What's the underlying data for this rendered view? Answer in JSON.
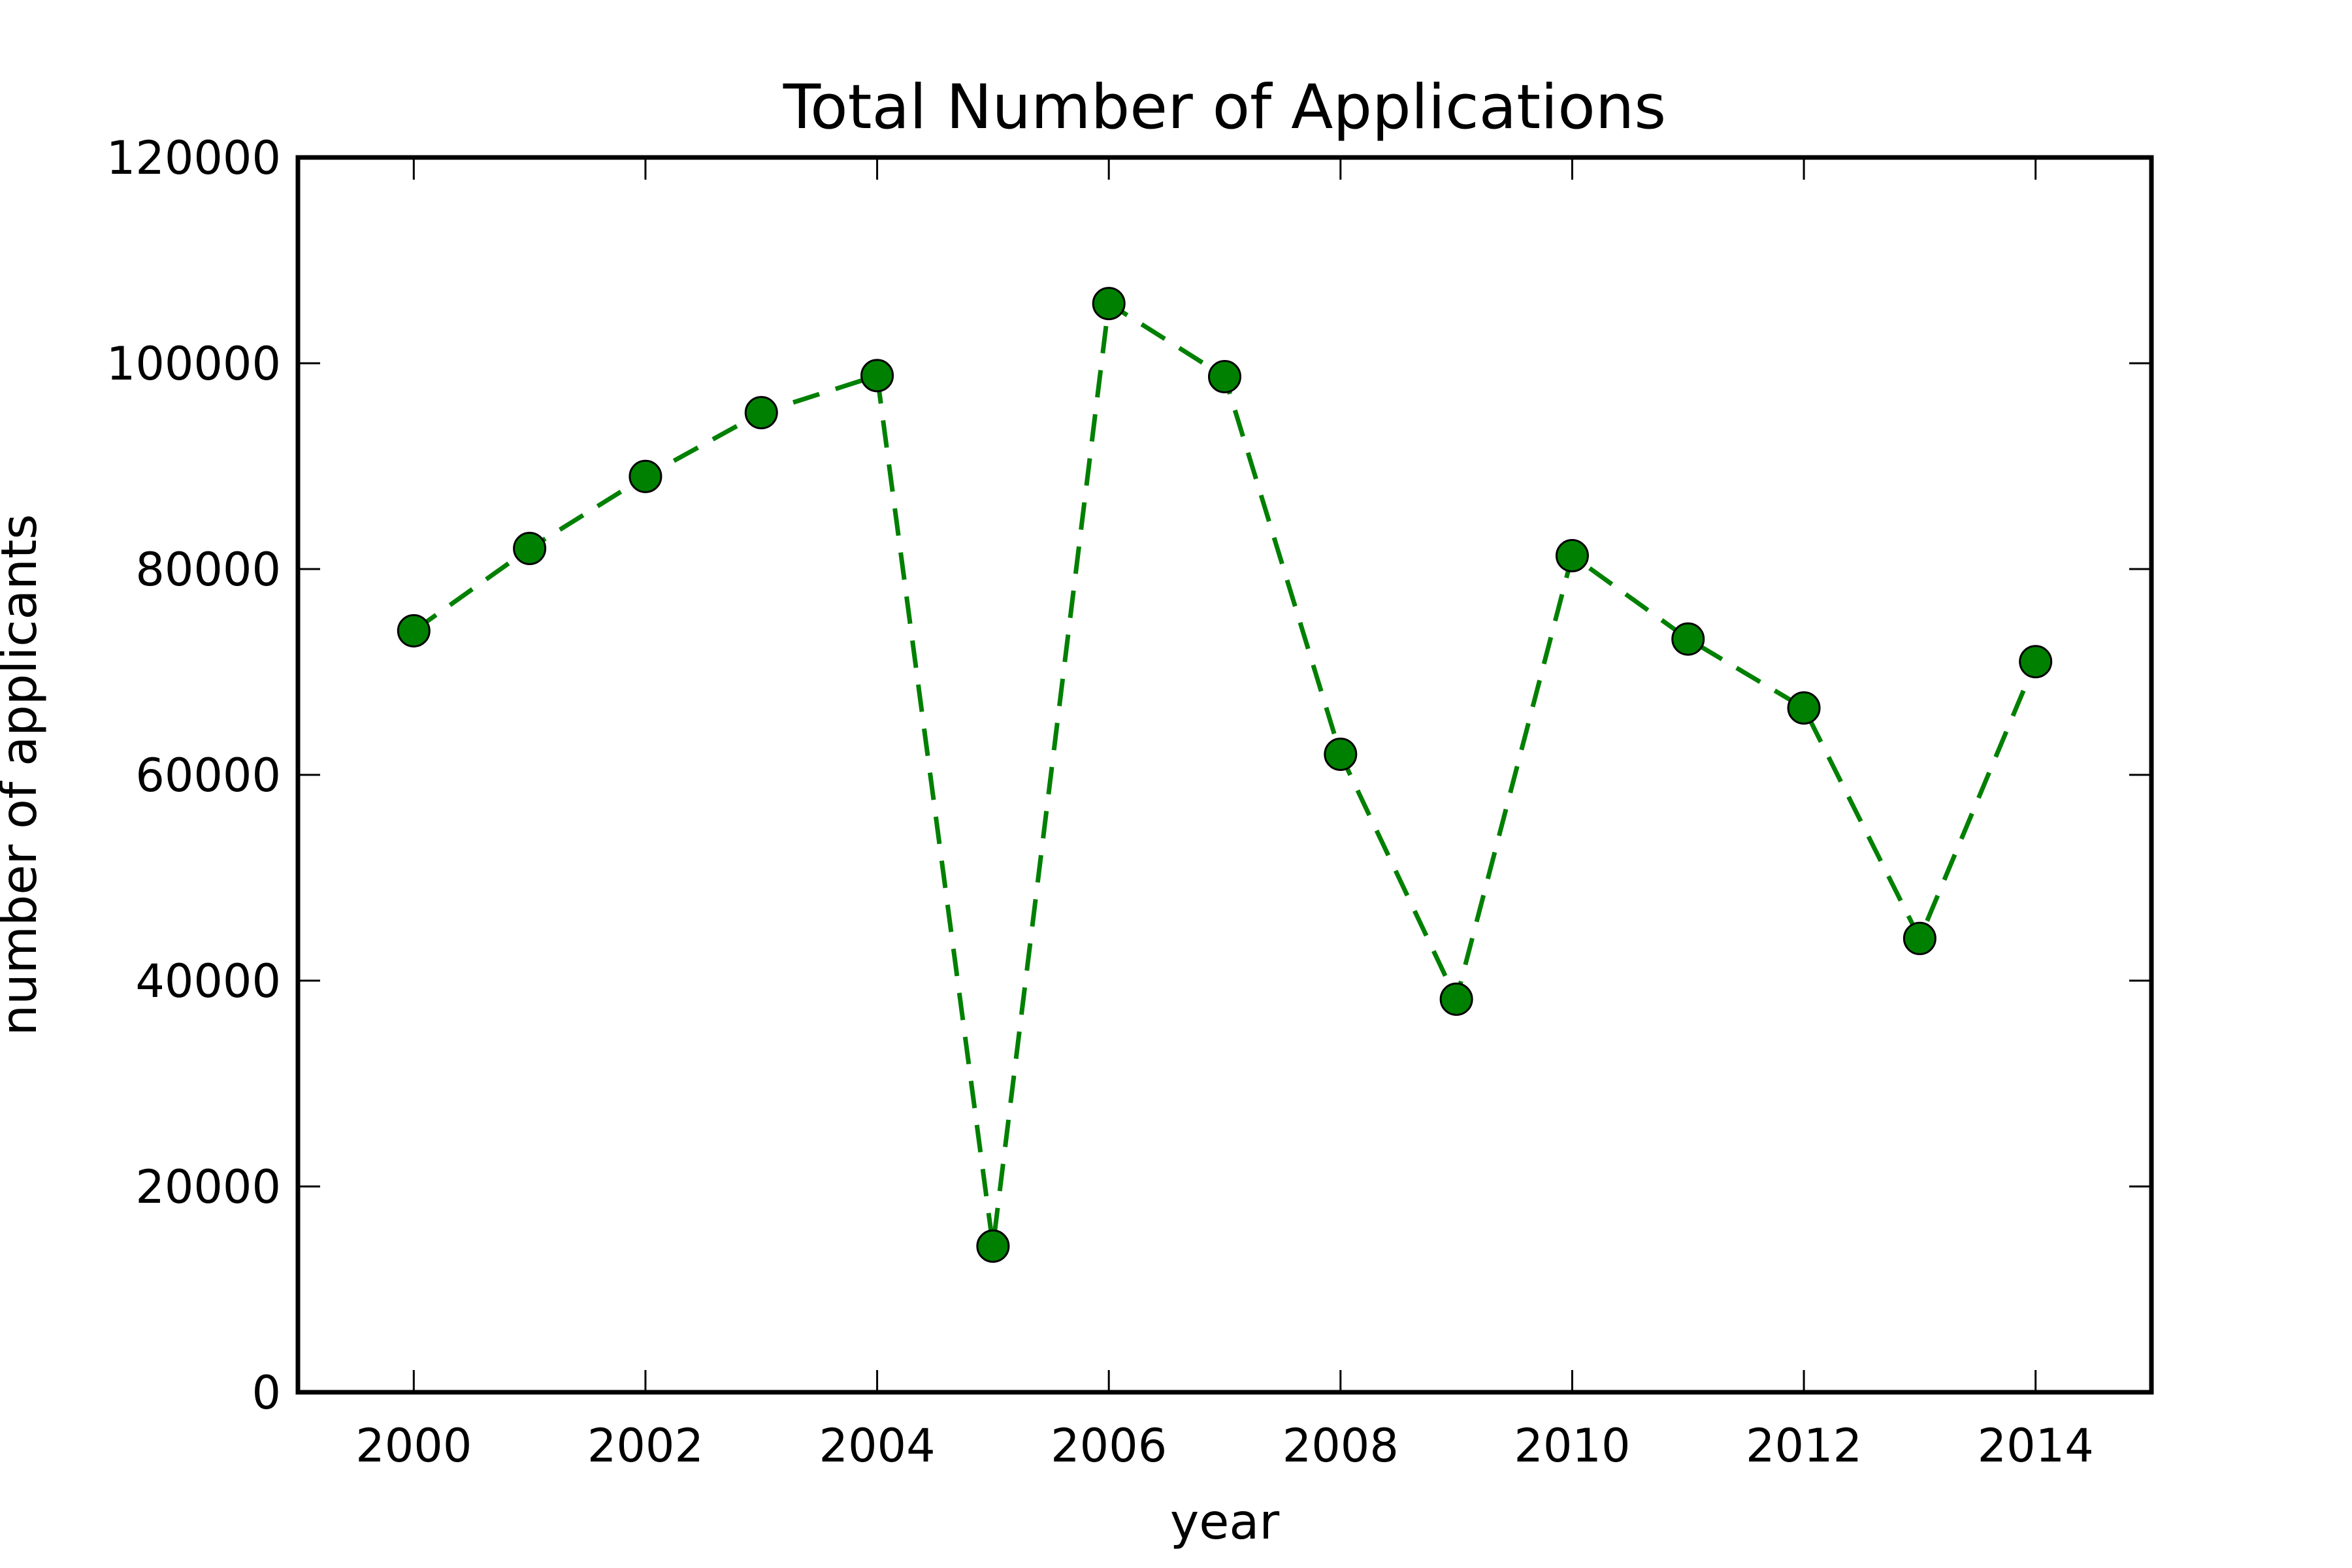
{
  "chart_data": {
    "type": "line",
    "title": "Total Number of Applications",
    "xlabel": "year",
    "ylabel": "number of applicants",
    "xlim": [
      1999,
      2015
    ],
    "ylim": [
      0,
      120000
    ],
    "x_ticks": [
      2000,
      2002,
      2004,
      2006,
      2008,
      2010,
      2012,
      2014
    ],
    "y_ticks": [
      0,
      20000,
      40000,
      60000,
      80000,
      100000,
      120000
    ],
    "grid": false,
    "line_style": "dashed",
    "marker": "circle",
    "series": [
      {
        "color": "#008000",
        "x": [
          2000,
          2001,
          2002,
          2003,
          2004,
          2005,
          2006,
          2007,
          2008,
          2009,
          2010,
          2011,
          2012,
          2013,
          2014
        ],
        "y": [
          74000,
          82000,
          89000,
          95200,
          98800,
          14200,
          105800,
          98700,
          62000,
          38200,
          81300,
          73200,
          66500,
          44100,
          71000
        ]
      }
    ]
  }
}
